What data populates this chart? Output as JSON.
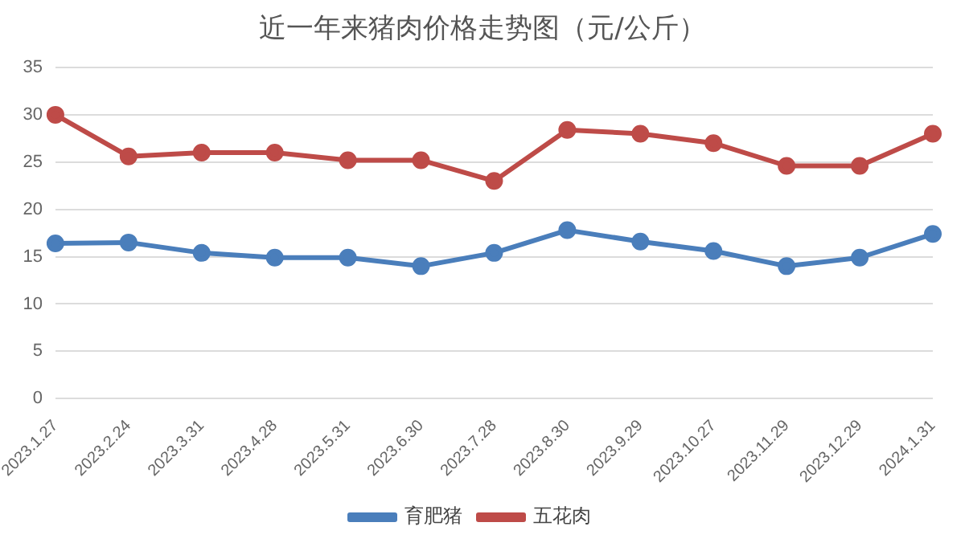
{
  "chart_data": {
    "type": "line",
    "title": "近一年来猪肉价格走势图（元/公斤）",
    "categories": [
      "2023.1.27",
      "2023.2.24",
      "2023.3.31",
      "2023.4.28",
      "2023.5.31",
      "2023.6.30",
      "2023.7.28",
      "2023.8.30",
      "2023.9.29",
      "2023.10.27",
      "2023.11.29",
      "2023.12.29",
      "2024.1.31"
    ],
    "series": [
      {
        "name": "育肥猪",
        "color": "#4a7ebb",
        "values": [
          16.4,
          16.5,
          15.4,
          14.9,
          14.9,
          14.0,
          15.4,
          17.8,
          16.6,
          15.6,
          14.0,
          14.9,
          17.4
        ]
      },
      {
        "name": "五花肉",
        "color": "#be4b48",
        "values": [
          30.0,
          25.6,
          26.0,
          26.0,
          25.2,
          25.2,
          23.0,
          28.4,
          28.0,
          27.0,
          24.6,
          24.6,
          28.0
        ]
      }
    ],
    "ylim": [
      0,
      35
    ],
    "yticks": [
      0,
      5,
      10,
      15,
      20,
      25,
      30,
      35
    ],
    "grid": "y",
    "legend": "bottom",
    "marker": "circle",
    "line_style": "solid"
  }
}
